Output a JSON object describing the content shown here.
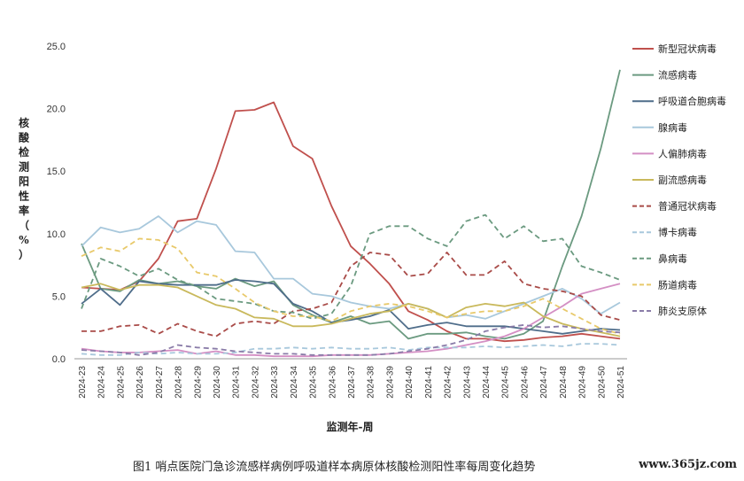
{
  "chart_data": {
    "type": "line",
    "xlabel": "监测年-周",
    "ylabel": "核酸检测阳性率（%）",
    "ylim": [
      0,
      25
    ],
    "yticks": [
      "0.0",
      "5.0",
      "10.0",
      "15.0",
      "20.0",
      "25.0"
    ],
    "grid": false,
    "legend_position": "right",
    "categories": [
      "2024-23",
      "2024-24",
      "2024-25",
      "2024-26",
      "2024-27",
      "2024-28",
      "2024-29",
      "2024-30",
      "2024-31",
      "2024-32",
      "2024-33",
      "2024-34",
      "2024-35",
      "2024-36",
      "2024-37",
      "2024-38",
      "2024-39",
      "2024-40",
      "2024-41",
      "2024-42",
      "2024-43",
      "2024-44",
      "2024-45",
      "2024-46",
      "2024-47",
      "2024-48",
      "2024-49",
      "2024-50",
      "2024-51"
    ],
    "series": [
      {
        "name": "新型冠状病毒",
        "color": "#c0504d",
        "dash": "solid",
        "values": [
          5.7,
          5.6,
          5.5,
          6.2,
          8.0,
          11.0,
          11.2,
          15.2,
          19.8,
          19.9,
          20.5,
          17.0,
          16.0,
          12.2,
          9.0,
          7.6,
          6.0,
          3.8,
          3.1,
          2.2,
          1.6,
          1.6,
          1.4,
          1.5,
          1.7,
          1.8,
          2.0,
          1.8,
          1.6
        ]
      },
      {
        "name": "流感病毒",
        "color": "#6b9a80",
        "dash": "solid",
        "values": [
          9.2,
          5.6,
          5.4,
          6.3,
          6.0,
          6.2,
          5.8,
          5.6,
          6.4,
          5.8,
          6.2,
          4.3,
          3.5,
          2.9,
          3.4,
          2.8,
          3.0,
          1.6,
          2.0,
          2.0,
          2.1,
          1.8,
          1.6,
          2.0,
          3.0,
          7.4,
          11.4,
          16.8,
          23.1
        ]
      },
      {
        "name": "呼吸道合胞病毒",
        "color": "#4f6d8a",
        "dash": "solid",
        "values": [
          4.4,
          5.6,
          4.3,
          6.2,
          6.0,
          5.9,
          5.9,
          5.9,
          6.3,
          6.2,
          6.0,
          4.4,
          3.8,
          2.9,
          3.1,
          3.4,
          3.9,
          2.4,
          2.7,
          2.9,
          2.6,
          2.6,
          2.6,
          2.4,
          2.2,
          2.0,
          2.2,
          2.4,
          2.3
        ]
      },
      {
        "name": "腺病毒",
        "color": "#a8c8dc",
        "dash": "solid",
        "values": [
          9.0,
          10.5,
          10.1,
          10.4,
          11.4,
          10.1,
          11.0,
          10.7,
          8.6,
          8.5,
          6.4,
          6.4,
          5.2,
          5.0,
          4.5,
          4.2,
          4.0,
          4.4,
          4.0,
          3.3,
          3.5,
          3.2,
          3.8,
          4.4,
          5.0,
          5.6,
          4.8,
          3.6,
          4.5
        ]
      },
      {
        "name": "人偏肺病毒",
        "color": "#d48fc4",
        "dash": "solid",
        "values": [
          0.8,
          0.6,
          0.5,
          0.5,
          0.6,
          0.7,
          0.4,
          0.6,
          0.3,
          0.3,
          0.2,
          0.2,
          0.2,
          0.3,
          0.3,
          0.3,
          0.4,
          0.5,
          0.6,
          0.8,
          1.1,
          1.4,
          1.8,
          2.4,
          3.3,
          4.2,
          5.2,
          5.6,
          6.0
        ]
      },
      {
        "name": "副流感病毒",
        "color": "#c9b95c",
        "dash": "solid",
        "values": [
          5.7,
          6.0,
          5.5,
          5.9,
          5.9,
          5.7,
          5.0,
          4.3,
          4.0,
          3.3,
          3.2,
          2.6,
          2.6,
          2.8,
          3.2,
          3.6,
          3.8,
          4.4,
          4.0,
          3.3,
          4.1,
          4.4,
          4.2,
          4.5,
          3.4,
          2.8,
          2.4,
          2.1,
          1.8
        ]
      },
      {
        "name": "普通冠状病毒",
        "color": "#a94b48",
        "dash": "6,4",
        "values": [
          2.2,
          2.2,
          2.6,
          2.7,
          2.0,
          2.8,
          2.2,
          1.8,
          2.8,
          3.0,
          2.8,
          3.8,
          4.0,
          4.5,
          7.4,
          8.5,
          8.3,
          6.6,
          6.8,
          8.5,
          6.7,
          6.7,
          7.8,
          6.0,
          5.6,
          5.4,
          5.0,
          3.5,
          3.1
        ]
      },
      {
        "name": "博卡病毒",
        "color": "#a8c8dc",
        "dash": "6,4",
        "values": [
          0.4,
          0.3,
          0.3,
          0.5,
          0.4,
          0.5,
          0.4,
          0.4,
          0.5,
          0.8,
          0.8,
          0.9,
          0.8,
          0.9,
          0.8,
          0.8,
          0.9,
          0.7,
          0.9,
          0.9,
          0.9,
          1.0,
          0.9,
          1.0,
          1.1,
          1.0,
          1.2,
          1.2,
          1.1
        ]
      },
      {
        "name": "鼻病毒",
        "color": "#6b9a80",
        "dash": "6,4",
        "values": [
          4.0,
          8.0,
          7.4,
          6.6,
          7.2,
          6.3,
          5.8,
          4.8,
          4.6,
          4.4,
          3.8,
          3.7,
          3.2,
          3.6,
          5.8,
          10.0,
          10.6,
          10.6,
          9.6,
          9.0,
          11.0,
          11.5,
          9.6,
          10.6,
          9.4,
          9.6,
          7.4,
          6.9,
          6.3
        ]
      },
      {
        "name": "肠道病毒",
        "color": "#e8c96a",
        "dash": "6,4",
        "values": [
          8.2,
          8.9,
          8.6,
          9.6,
          9.5,
          8.8,
          6.9,
          6.6,
          5.6,
          4.5,
          3.8,
          3.4,
          3.4,
          3.0,
          3.8,
          4.2,
          4.4,
          4.2,
          3.8,
          3.3,
          3.6,
          3.8,
          3.8,
          4.2,
          4.8,
          4.0,
          3.2,
          2.4,
          2.0
        ]
      },
      {
        "name": "肺炎支原体",
        "color": "#8a7ca8",
        "dash": "6,4",
        "values": [
          0.7,
          0.6,
          0.5,
          0.3,
          0.5,
          1.1,
          0.9,
          0.8,
          0.6,
          0.5,
          0.4,
          0.4,
          0.3,
          0.3,
          0.3,
          0.3,
          0.4,
          0.6,
          0.8,
          1.1,
          1.5,
          2.2,
          2.5,
          2.7,
          2.5,
          2.6,
          2.4,
          2.2,
          2.1
        ]
      }
    ]
  },
  "caption": "图1    哨点医院门急诊流感样病例呼吸道样本病原体核酸检测阳性率每周变化趋势",
  "watermark": "www.365jz.com"
}
